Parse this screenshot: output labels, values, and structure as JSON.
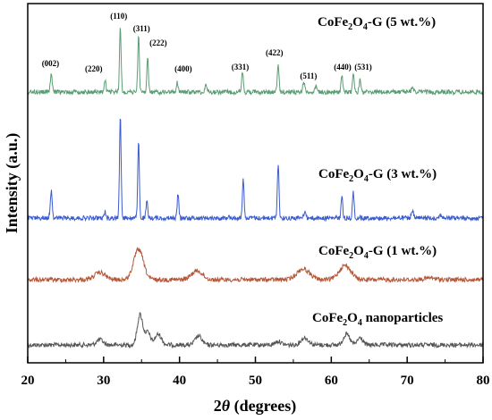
{
  "chart_data": {
    "type": "line",
    "xlabel_prefix": "2",
    "xlabel_theta": "θ",
    "xlabel_suffix": " (degrees)",
    "ylabel": "Intensity (a.u.)",
    "xlim": [
      20,
      80
    ],
    "xticks": [
      "20",
      "30",
      "40",
      "50",
      "60",
      "70",
      "80"
    ],
    "grid": false,
    "series": [
      {
        "name": "CoFe2O4 nanoparticles",
        "label_main": "CoFe",
        "label_sub1": "2",
        "label_mid": "O",
        "label_sub2": "4",
        "label_tail": " nanoparticles",
        "color": "#555555",
        "peaks": [
          [
            29.5,
            0.15,
            0.6
          ],
          [
            34.8,
            0.85,
            0.5
          ],
          [
            35.8,
            0.35,
            0.5
          ],
          [
            37.2,
            0.3,
            0.6
          ],
          [
            42.5,
            0.25,
            0.6
          ],
          [
            53.0,
            0.1,
            0.6
          ],
          [
            56.5,
            0.2,
            0.7
          ],
          [
            62.0,
            0.3,
            0.6
          ],
          [
            63.8,
            0.2,
            0.5
          ]
        ]
      },
      {
        "name": "CoFe2O4-G (1 wt.%)",
        "label_main": "CoFe",
        "label_sub1": "2",
        "label_mid": "O",
        "label_sub2": "4",
        "label_tail": "-G (1 wt.%)",
        "color": "#b5583a",
        "peaks": [
          [
            29.5,
            0.2,
            1.0
          ],
          [
            34.6,
            0.85,
            0.9
          ],
          [
            42.3,
            0.25,
            1.0
          ],
          [
            56.3,
            0.3,
            1.2
          ],
          [
            61.8,
            0.4,
            1.1
          ],
          [
            73.0,
            0.05,
            1.0
          ]
        ]
      },
      {
        "name": "CoFe2O4-G (3 wt.%)",
        "label_main": "CoFe",
        "label_sub1": "2",
        "label_mid": "O",
        "label_sub2": "4",
        "label_tail": "-G (3 wt.%)",
        "color": "#3a5bcf",
        "peaks": [
          [
            23.1,
            0.42,
            0.18
          ],
          [
            30.2,
            0.1,
            0.15
          ],
          [
            32.2,
            1.6,
            0.15
          ],
          [
            34.6,
            1.2,
            0.15
          ],
          [
            35.7,
            0.25,
            0.15
          ],
          [
            39.8,
            0.38,
            0.15
          ],
          [
            46.5,
            0.06,
            0.15
          ],
          [
            48.4,
            0.6,
            0.15
          ],
          [
            53.0,
            0.85,
            0.15
          ],
          [
            56.5,
            0.1,
            0.2
          ],
          [
            61.4,
            0.35,
            0.15
          ],
          [
            62.9,
            0.4,
            0.15
          ],
          [
            70.7,
            0.1,
            0.2
          ],
          [
            74.4,
            0.05,
            0.2
          ]
        ]
      },
      {
        "name": "CoFe2O4-G (5 wt.%)",
        "label_main": "CoFe",
        "label_sub1": "2",
        "label_mid": "O",
        "label_sub2": "4",
        "label_tail": "-G (5 wt.%)",
        "color": "#5b9d73",
        "peaks": [
          [
            23.1,
            0.25,
            0.18
          ],
          [
            30.2,
            0.18,
            0.15
          ],
          [
            32.2,
            0.95,
            0.15
          ],
          [
            34.6,
            0.85,
            0.15
          ],
          [
            35.8,
            0.5,
            0.15
          ],
          [
            39.7,
            0.16,
            0.15
          ],
          [
            43.5,
            0.1,
            0.2
          ],
          [
            48.3,
            0.3,
            0.15
          ],
          [
            53.0,
            0.42,
            0.15
          ],
          [
            56.4,
            0.14,
            0.2
          ],
          [
            58.0,
            0.08,
            0.2
          ],
          [
            61.4,
            0.25,
            0.15
          ],
          [
            62.9,
            0.28,
            0.15
          ],
          [
            63.8,
            0.2,
            0.15
          ],
          [
            70.7,
            0.08,
            0.2
          ]
        ]
      }
    ],
    "annotations": [
      {
        "text": "(002)",
        "x": 23.0
      },
      {
        "text": "(220)",
        "x": 28.7
      },
      {
        "text": "(110)",
        "x": 32.0
      },
      {
        "text": "(311)",
        "x": 35.0
      },
      {
        "text": "(222)",
        "x": 37.2
      },
      {
        "text": "(400)",
        "x": 40.5
      },
      {
        "text": "(331)",
        "x": 48.0
      },
      {
        "text": "(422)",
        "x": 52.5
      },
      {
        "text": "(511)",
        "x": 57.0
      },
      {
        "text": "(440)",
        "x": 61.5
      },
      {
        "text": "(531)",
        "x": 64.2
      }
    ]
  }
}
